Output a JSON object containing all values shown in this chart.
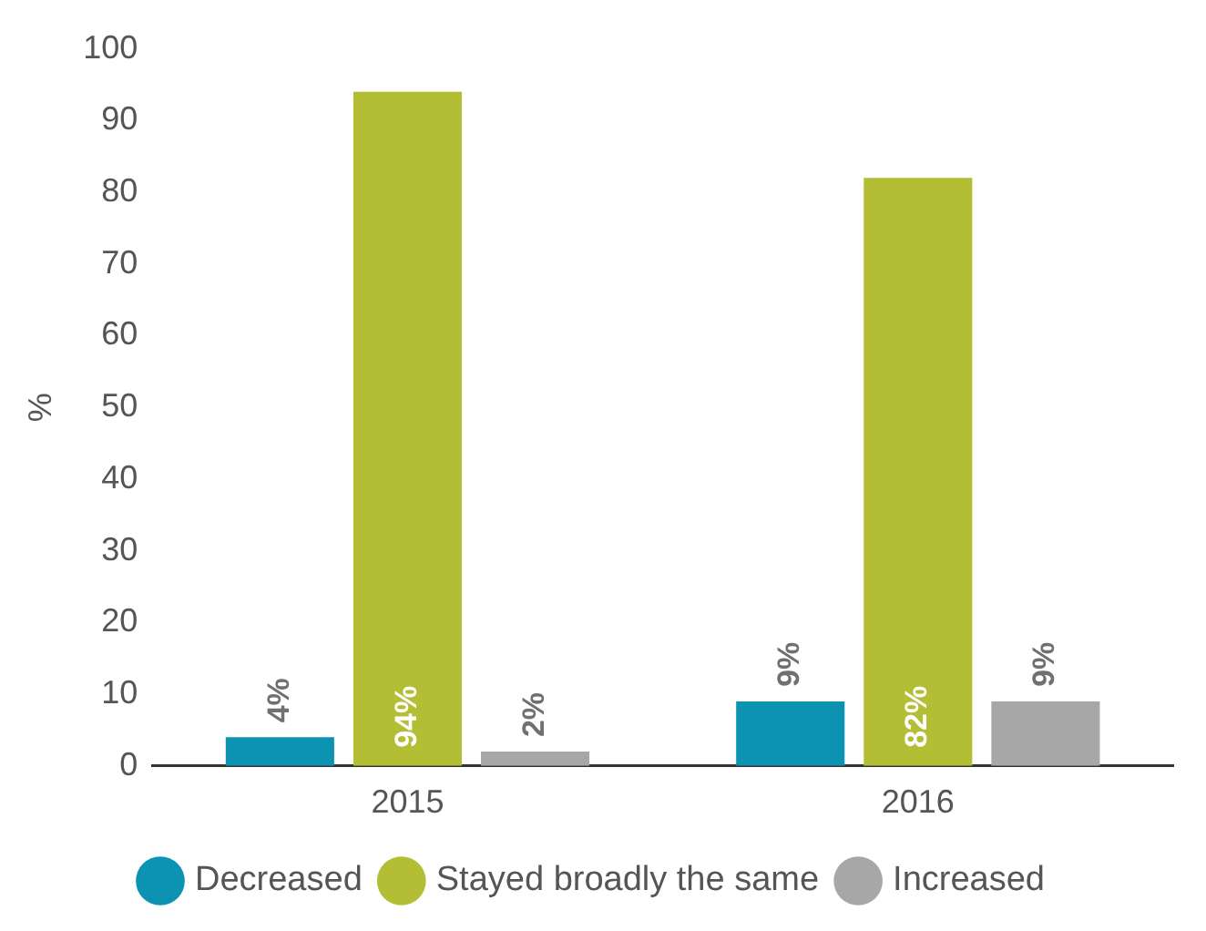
{
  "chart_data": {
    "type": "bar",
    "ylabel": "%",
    "categories": [
      "2015",
      "2016"
    ],
    "series": [
      {
        "name": "Decreased",
        "color": "#0d93b2",
        "values": [
          4,
          9
        ],
        "value_labels": [
          "4%",
          "9%"
        ]
      },
      {
        "name": "Stayed broadly the same",
        "color": "#b4be35",
        "values": [
          94,
          82
        ],
        "value_labels": [
          "94%",
          "82%"
        ]
      },
      {
        "name": "Increased",
        "color": "#a7a7a7",
        "values": [
          2,
          9
        ],
        "value_labels": [
          "2%",
          "9%"
        ]
      }
    ],
    "ylim": [
      0,
      100
    ],
    "yticks": [
      0,
      10,
      20,
      30,
      40,
      50,
      60,
      70,
      80,
      90,
      100
    ],
    "grid": false,
    "legend": "bottom"
  }
}
